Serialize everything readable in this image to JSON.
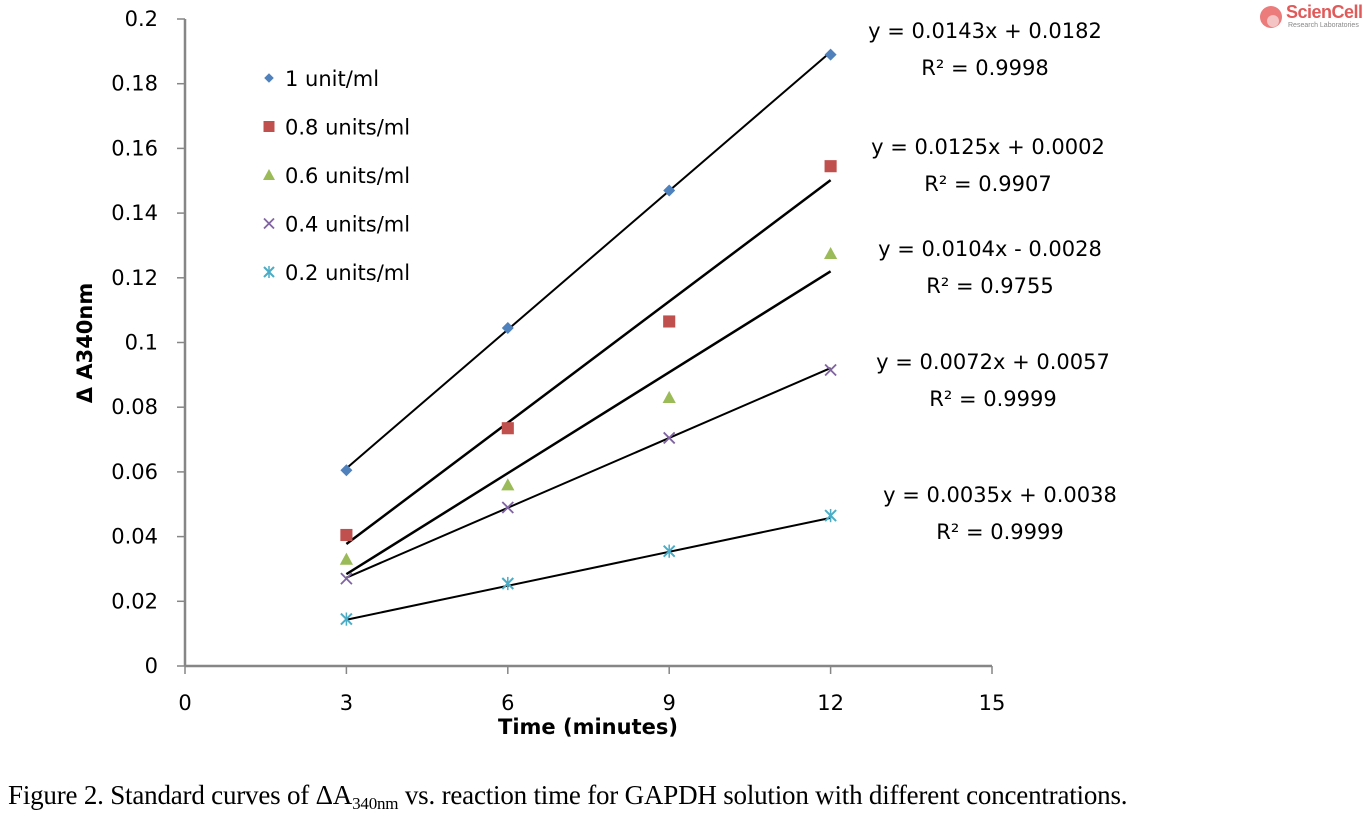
{
  "chart_data": {
    "type": "scatter",
    "title": "",
    "xlabel": "Time (minutes)",
    "ylabel": "Δ A340nm",
    "xlim": [
      0,
      15
    ],
    "ylim": [
      0,
      0.2
    ],
    "xticks": [
      "0",
      "3",
      "6",
      "9",
      "12",
      "15"
    ],
    "xtick_values": [
      0,
      3,
      6,
      9,
      12,
      15
    ],
    "yticks": [
      "0",
      "0.02",
      "0.04",
      "0.06",
      "0.08",
      "0.1",
      "0.12",
      "0.14",
      "0.16",
      "0.18",
      "0.2"
    ],
    "ytick_values": [
      0,
      0.02,
      0.04,
      0.06,
      0.08,
      0.1,
      0.12,
      0.14,
      0.16,
      0.18,
      0.2
    ],
    "grid": false,
    "legend_position": "top-left",
    "x": [
      3,
      6,
      9,
      12
    ],
    "series": [
      {
        "name": "1 unit/ml",
        "marker": "diamond",
        "color": "#4f81bd",
        "values": [
          0.0605,
          0.1045,
          0.147,
          0.189
        ],
        "trendline": {
          "slope": 0.0143,
          "intercept": 0.0182,
          "equation": "y = 0.0143x + 0.0182",
          "r2": "R² = 0.9998"
        }
      },
      {
        "name": "0.8 units/ml",
        "marker": "square",
        "color": "#c0504d",
        "values": [
          0.0405,
          0.0735,
          0.1065,
          0.1545
        ],
        "trendline": {
          "slope": 0.0125,
          "intercept": 0.0002,
          "equation": "y = 0.0125x + 0.0002",
          "r2": "R² = 0.9907"
        }
      },
      {
        "name": "0.6 units/ml",
        "marker": "triangle",
        "color": "#9bbb59",
        "values": [
          0.033,
          0.056,
          0.083,
          0.1275
        ],
        "trendline": {
          "slope": 0.0104,
          "intercept": -0.0028,
          "equation": "y = 0.0104x - 0.0028",
          "r2": "R² = 0.9755"
        }
      },
      {
        "name": "0.4 units/ml",
        "marker": "x",
        "color": "#8064a2",
        "values": [
          0.027,
          0.049,
          0.0705,
          0.0915
        ],
        "trendline": {
          "slope": 0.0072,
          "intercept": 0.0057,
          "equation": "y = 0.0072x + 0.0057",
          "r2": "R² = 0.9999"
        }
      },
      {
        "name": "0.2 units/ml",
        "marker": "star",
        "color": "#4bacc6",
        "values": [
          0.0145,
          0.0255,
          0.0355,
          0.0465
        ],
        "trendline": {
          "slope": 0.0035,
          "intercept": 0.0038,
          "equation": "y = 0.0035x + 0.0038",
          "r2": "R² = 0.9999"
        }
      }
    ]
  },
  "caption": {
    "prefix": "Figure 2. Standard curves of ΔA",
    "subscript": "340nm",
    "suffix": " vs. reaction time for GAPDH solution with different concentrations."
  },
  "logo": {
    "name": "ScienCell",
    "tagline": "Research Laboratories"
  }
}
